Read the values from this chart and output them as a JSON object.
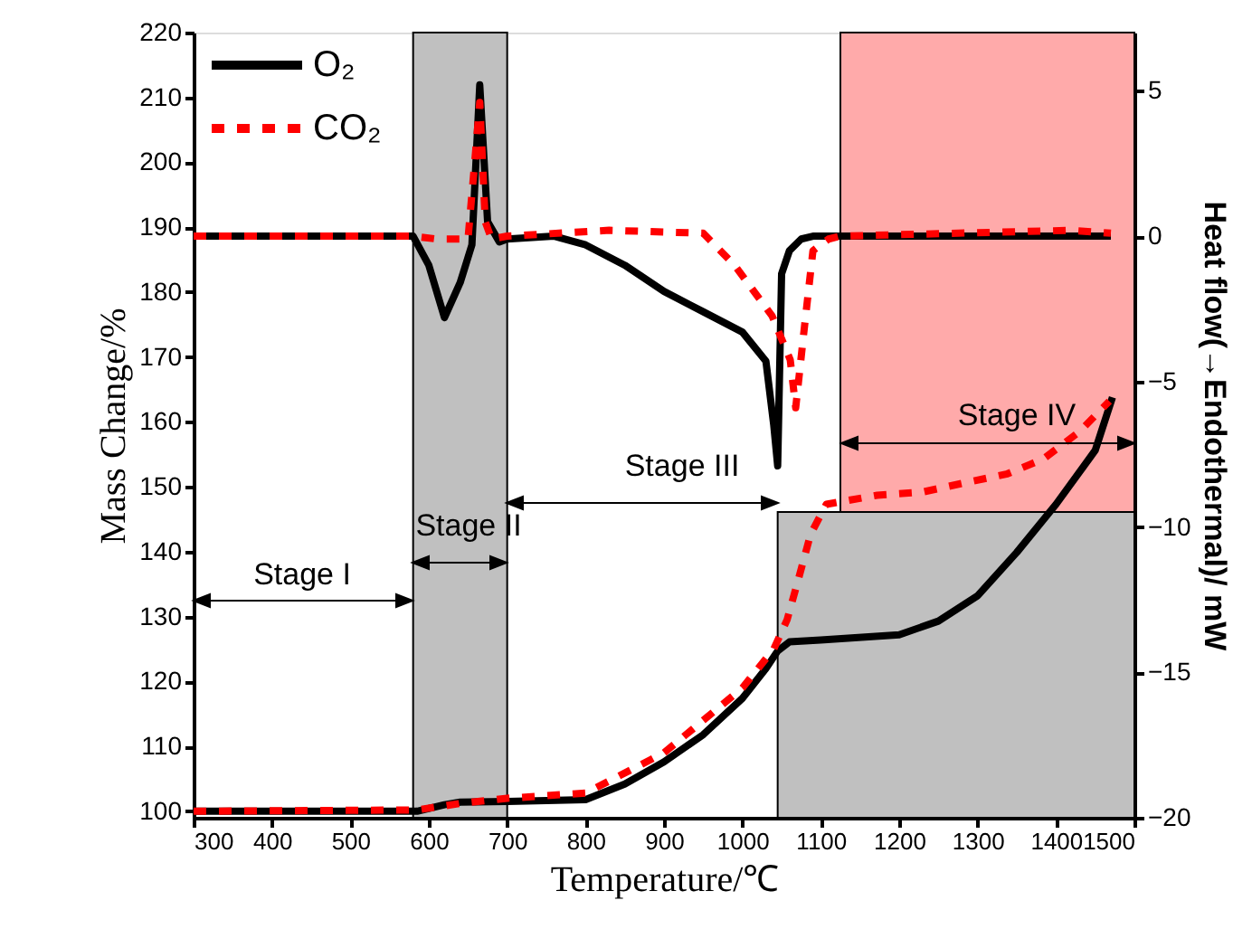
{
  "chart_data": {
    "type": "line",
    "xlabel": "Temperature/℃",
    "ylabel": "Mass Change/%",
    "y2label": "Heat flow(→Endothermal)/ mW",
    "xlim": [
      300,
      1500
    ],
    "xticks": [
      300,
      400,
      500,
      600,
      700,
      800,
      900,
      1000,
      1100,
      1200,
      1300,
      1400,
      1500
    ],
    "ylim": [
      99,
      220
    ],
    "yticks": [
      100,
      110,
      120,
      130,
      140,
      150,
      160,
      170,
      180,
      190,
      200,
      210,
      220
    ],
    "y2lim": [
      -20,
      7
    ],
    "y2ticks": [
      -20,
      -15,
      -10,
      -5,
      0,
      5
    ],
    "legend": "top left",
    "grid": false,
    "series": [
      {
        "name": "O₂",
        "color": "#000000",
        "line_style": "solid",
        "axis": "y2",
        "x": [
          300,
          580,
          600,
          620,
          640,
          655,
          665,
          675,
          690,
          700,
          760,
          800,
          850,
          900,
          950,
          1000,
          1030,
          1040,
          1045,
          1050,
          1060,
          1075,
          1090,
          1125,
          1470
        ],
        "values": [
          0,
          0,
          -1.0,
          -2.8,
          -1.6,
          -0.3,
          5.2,
          0.5,
          -0.2,
          -0.1,
          0,
          -0.3,
          -1.0,
          -1.9,
          -2.6,
          -3.3,
          -4.3,
          -6.5,
          -7.9,
          -1.3,
          -0.5,
          -0.1,
          0,
          0,
          0
        ]
      },
      {
        "name": "CO₂",
        "color": "#ff0000",
        "line_style": "dashed",
        "axis": "y2",
        "x": [
          300,
          580,
          610,
          650,
          660,
          665,
          672,
          680,
          700,
          830,
          950,
          990,
          1038,
          1061,
          1068,
          1078,
          1090,
          1110,
          1125,
          1420,
          1470
        ],
        "values": [
          0,
          0,
          -0.1,
          -0.1,
          3.0,
          4.6,
          0.5,
          -0.1,
          0,
          0.2,
          0.1,
          -1.0,
          -2.75,
          -4.25,
          -5.9,
          -3.4,
          -0.5,
          -0.1,
          0,
          0.2,
          0.1
        ]
      },
      {
        "color": "#000000",
        "line_style": "solid",
        "x": [
          300,
          585,
          620,
          640,
          700,
          800,
          850,
          900,
          950,
          1000,
          1030,
          1045,
          1060,
          1100,
          1200,
          1250,
          1300,
          1350,
          1400,
          1450,
          1472
        ],
        "values": [
          100,
          100,
          101,
          101.4,
          101.5,
          101.8,
          104.2,
          107.6,
          111.8,
          117.4,
          122,
          124.7,
          126.1,
          126.4,
          127.2,
          129.3,
          133.2,
          139.9,
          147.3,
          155.6,
          163.8
        ]
      },
      {
        "color": "#ff0000",
        "line_style": "dashed",
        "x": [
          300,
          585,
          640,
          700,
          800,
          900,
          1000,
          1040,
          1057,
          1072,
          1087,
          1107,
          1172,
          1230,
          1283,
          1338,
          1384,
          1430,
          1468
        ],
        "values": [
          100,
          100.2,
          101.2,
          102,
          102.8,
          109,
          119,
          125,
          129.5,
          136,
          142.7,
          147.3,
          148.7,
          149.2,
          150.6,
          152,
          154.3,
          158.5,
          163.2
        ]
      }
    ],
    "bands": [
      {
        "axis": "x",
        "from": 580,
        "to": 700,
        "color": "#c0c0c0"
      },
      {
        "axis": "x",
        "from": 1045,
        "to": 1500,
        "color": "#c0c0c0"
      },
      {
        "axis": "x",
        "from": 1125,
        "to": 1500,
        "color": "#ffaaaa"
      }
    ],
    "annotations": [
      "Stage I",
      "Stage II",
      "Stage III",
      "Stage IV"
    ]
  }
}
